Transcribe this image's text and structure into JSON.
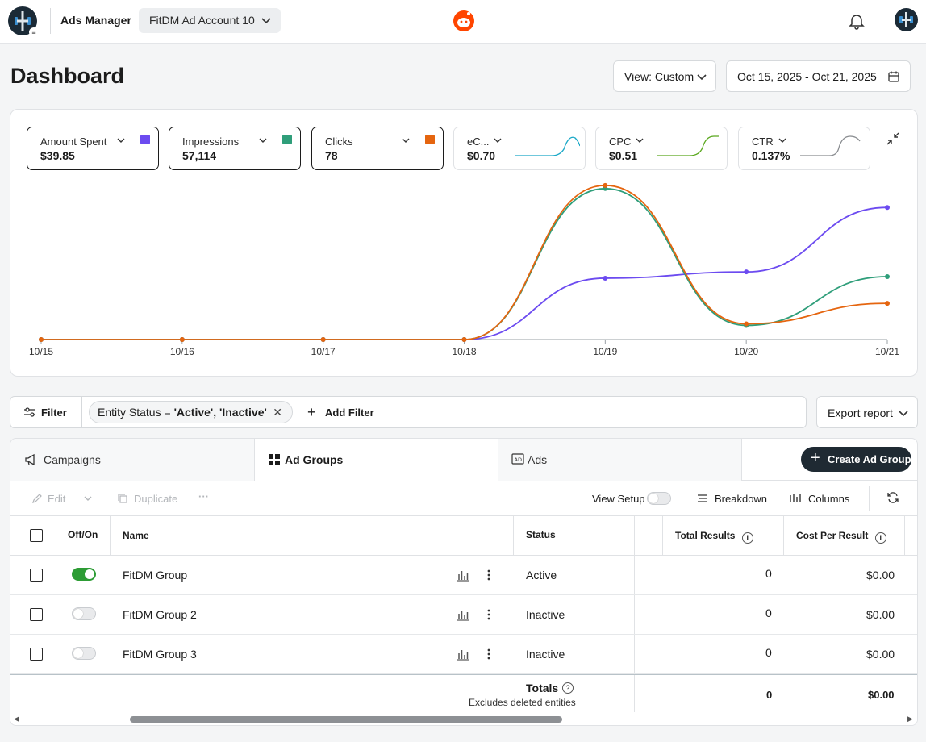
{
  "header": {
    "app_title": "Ads Manager",
    "account_name": "FitDM Ad Account 10"
  },
  "page": {
    "title": "Dashboard",
    "view_label": "View: Custom",
    "date_range": "Oct 15, 2025 - Oct 21, 2025"
  },
  "metrics": [
    {
      "label": "Amount Spent",
      "value": "$39.85",
      "selected": true,
      "color": "#6c4bf0"
    },
    {
      "label": "Impressions",
      "value": "57,114",
      "selected": true,
      "color": "#2f9e7a"
    },
    {
      "label": "Clicks",
      "value": "78",
      "selected": true,
      "color": "#e5650f"
    },
    {
      "label": "eC...",
      "value": "$0.70",
      "selected": false,
      "color": "#1aa8c7"
    },
    {
      "label": "CPC",
      "value": "$0.51",
      "selected": false,
      "color": "#5aa81e"
    },
    {
      "label": "CTR",
      "value": "0.137%",
      "selected": false,
      "color": "#8a8d91"
    }
  ],
  "chart_data": {
    "type": "line",
    "x": [
      "10/15",
      "10/16",
      "10/17",
      "10/18",
      "10/19",
      "10/20",
      "10/21"
    ],
    "series": [
      {
        "name": "Amount Spent",
        "color": "#6c4bf0",
        "values": [
          0,
          0,
          0,
          0,
          0.39,
          0.43,
          0.84
        ]
      },
      {
        "name": "Impressions",
        "color": "#2f9e7a",
        "values": [
          0,
          0,
          0,
          0,
          0.96,
          0.09,
          0.4
        ]
      },
      {
        "name": "Clicks",
        "color": "#e5650f",
        "values": [
          0,
          0,
          0,
          0,
          0.98,
          0.1,
          0.23
        ]
      }
    ],
    "ylim": [
      0,
      1
    ],
    "grid": false,
    "legend": "none"
  },
  "filters": {
    "filter_label": "Filter",
    "chip_field": "Entity Status =",
    "chip_value": "'Active', 'Inactive'",
    "add_filter_label": "Add Filter",
    "export_label": "Export report"
  },
  "tabs": {
    "campaigns": "Campaigns",
    "ad_groups": "Ad Groups",
    "ads": "Ads",
    "create_label": "Create Ad Group"
  },
  "toolbar": {
    "edit": "Edit",
    "duplicate": "Duplicate",
    "more": "···",
    "view_setup": "View Setup",
    "breakdown": "Breakdown",
    "columns": "Columns"
  },
  "table": {
    "headers": {
      "offon": "Off/On",
      "name": "Name",
      "status": "Status",
      "total_results": "Total Results",
      "cost_per_result": "Cost Per Result"
    },
    "rows": [
      {
        "name": "FitDM Group",
        "on": true,
        "status": "Active",
        "total_results": "0",
        "cost_per_result": "$0.00"
      },
      {
        "name": "FitDM Group 2",
        "on": false,
        "status": "Inactive",
        "total_results": "0",
        "cost_per_result": "$0.00"
      },
      {
        "name": "FitDM Group 3",
        "on": false,
        "status": "Inactive",
        "total_results": "0",
        "cost_per_result": "$0.00"
      }
    ],
    "totals": {
      "label": "Totals",
      "note": "Excludes deleted entities",
      "total_results": "0",
      "cost_per_result": "$0.00"
    }
  }
}
